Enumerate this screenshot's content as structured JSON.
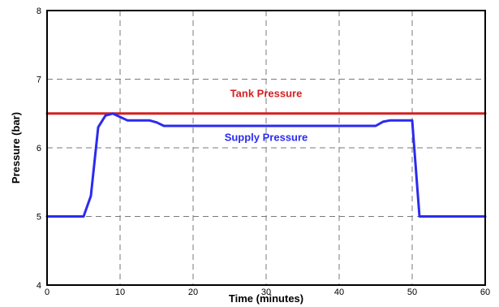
{
  "chart_data": {
    "type": "line",
    "title": "",
    "xlabel": "Time (minutes)",
    "ylabel": "Pressure (bar)",
    "xlim": [
      0,
      60
    ],
    "ylim": [
      4,
      8
    ],
    "x_ticks": [
      "0",
      "10",
      "20",
      "30",
      "40",
      "50",
      "60"
    ],
    "y_ticks": [
      "4",
      "5",
      "6",
      "7",
      "8"
    ],
    "grid": true,
    "series": [
      {
        "name": "Tank Pressure",
        "color": "#d42020",
        "x": [
          0,
          60
        ],
        "y": [
          6.5,
          6.5
        ]
      },
      {
        "name": "Supply Pressure",
        "color": "#2b2bf0",
        "x": [
          0,
          5,
          6,
          7,
          8,
          9,
          10,
          11,
          14,
          15,
          16,
          20,
          30,
          40,
          45,
          46,
          47,
          49,
          50,
          51,
          60
        ],
        "y": [
          5.0,
          5.0,
          5.3,
          6.3,
          6.47,
          6.5,
          6.45,
          6.4,
          6.4,
          6.37,
          6.32,
          6.32,
          6.32,
          6.32,
          6.32,
          6.38,
          6.4,
          6.4,
          6.4,
          5.0,
          5.0
        ]
      }
    ],
    "annotations": [
      {
        "text": "Tank Pressure",
        "x": 30,
        "y": 6.74,
        "color": "#d42020"
      },
      {
        "text": "Supply Pressure",
        "x": 30,
        "y": 6.1,
        "color": "#2b2bf0"
      }
    ]
  }
}
